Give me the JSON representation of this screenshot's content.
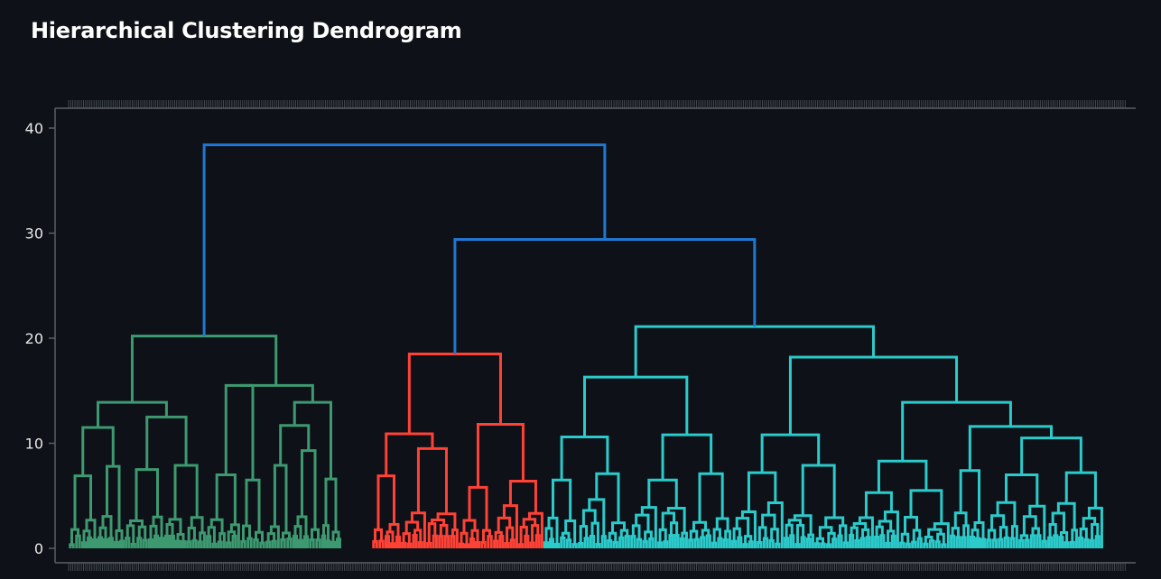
{
  "title": "Hierarchical Clustering Dendrogram",
  "chart_data": {
    "type": "dendrogram",
    "title": "Hierarchical Clustering Dendrogram",
    "xlabel": "",
    "ylabel": "",
    "ylim": [
      0,
      41
    ],
    "yticks": [
      0,
      10,
      20,
      30,
      40
    ],
    "leaf_count_estimate": 1000,
    "colors": {
      "background": "#0e1117",
      "axis": "#5a5f66",
      "root_links": "#1f78d1",
      "cluster_1": "#3d9970",
      "cluster_2": "#ff4136",
      "cluster_3": "#2bcbcb"
    },
    "clusters": [
      {
        "color": "cluster_1",
        "x_range": [
          0,
          0.287
        ],
        "top_height": 20.2
      },
      {
        "color": "cluster_2",
        "x_range": [
          0.287,
          0.449
        ],
        "top_height": 18.5
      },
      {
        "color": "cluster_3",
        "x_range": [
          0.449,
          1.0
        ],
        "top_height": 21.1
      }
    ],
    "upper_merges": [
      {
        "height": 29.4,
        "joins": [
          "cluster_2",
          "cluster_3"
        ]
      },
      {
        "height": 38.4,
        "joins": [
          "cluster_1",
          "cluster_2+cluster_3"
        ]
      }
    ]
  }
}
